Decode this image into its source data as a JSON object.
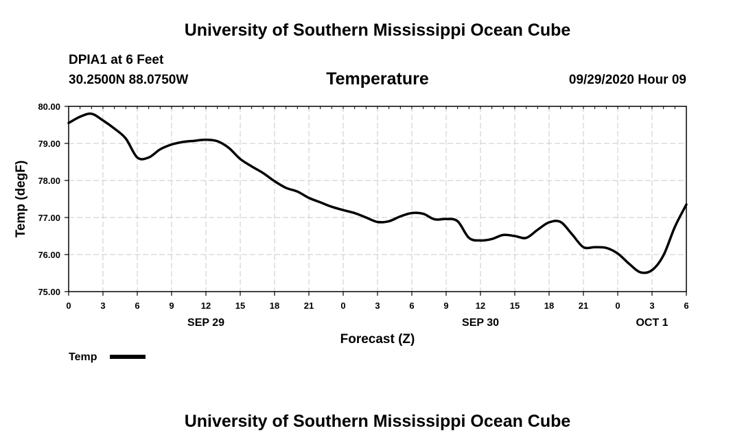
{
  "header": {
    "top_title": "University of Southern Mississippi Ocean Cube",
    "station": "DPIA1 at 6 Feet",
    "coords": "30.2500N 88.0750W",
    "chart_title": "Temperature",
    "datetime": "09/29/2020 Hour 09"
  },
  "footer": {
    "bottom_title": "University of Southern Mississippi Ocean Cube"
  },
  "chart_data": {
    "type": "line",
    "title": "Temperature",
    "xlabel": "Forecast (Z)",
    "ylabel": "Temp (degF)",
    "ylim": [
      75.0,
      80.0
    ],
    "xlim": [
      0,
      54
    ],
    "yticks": [
      "75.00",
      "76.00",
      "77.00",
      "78.00",
      "79.00",
      "80.00"
    ],
    "xticks": [
      "0",
      "3",
      "6",
      "9",
      "12",
      "15",
      "18",
      "21",
      "0",
      "3",
      "6",
      "9",
      "12",
      "15",
      "18",
      "21",
      "0",
      "3",
      "6"
    ],
    "date_labels": [
      {
        "label": "SEP 29",
        "at_hour": 12
      },
      {
        "label": "SEP 30",
        "at_hour": 36
      },
      {
        "label": "OCT 1",
        "at_hour": 51
      }
    ],
    "grid": true,
    "legend": {
      "position": "bottom-left",
      "entries": [
        "Temp"
      ]
    },
    "series": [
      {
        "name": "Temp",
        "color": "#000000",
        "x": [
          0,
          1,
          2,
          3,
          4,
          5,
          6,
          7,
          8,
          9,
          10,
          11,
          12,
          13,
          14,
          15,
          16,
          17,
          18,
          19,
          20,
          21,
          22,
          23,
          24,
          25,
          26,
          27,
          28,
          29,
          30,
          31,
          32,
          33,
          34,
          35,
          36,
          37,
          38,
          39,
          40,
          41,
          42,
          43,
          44,
          45,
          46,
          47,
          48,
          49,
          50,
          51,
          52,
          53,
          54
        ],
        "values": [
          79.55,
          79.72,
          79.8,
          79.62,
          79.4,
          79.13,
          78.62,
          78.62,
          78.84,
          78.97,
          79.04,
          79.07,
          79.1,
          79.06,
          78.88,
          78.58,
          78.38,
          78.2,
          77.98,
          77.8,
          77.7,
          77.53,
          77.41,
          77.29,
          77.2,
          77.12,
          77.0,
          76.88,
          76.9,
          77.03,
          77.12,
          77.1,
          76.95,
          76.96,
          76.9,
          76.45,
          76.38,
          76.42,
          76.53,
          76.5,
          76.45,
          76.67,
          76.87,
          76.88,
          76.55,
          76.2,
          76.2,
          76.18,
          76.03,
          75.75,
          75.52,
          75.58,
          75.98,
          76.75,
          77.35
        ]
      }
    ]
  }
}
